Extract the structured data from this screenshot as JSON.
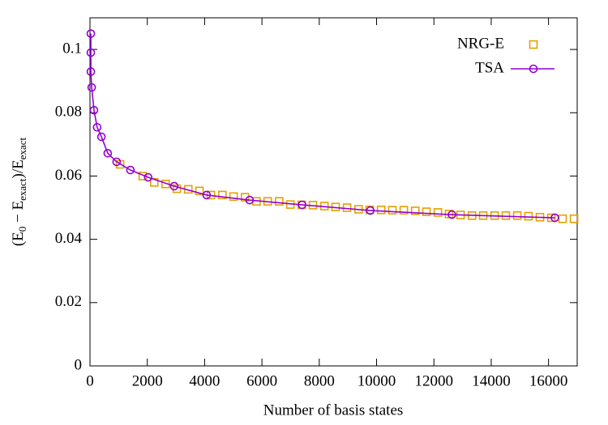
{
  "chart_data": {
    "type": "line",
    "xlabel": "Number of basis states",
    "ylabel": [
      "(E",
      "0",
      " − E",
      "exact",
      ")/E",
      "exact"
    ],
    "xlim": [
      0,
      17000
    ],
    "ylim": [
      0,
      0.11
    ],
    "xticks": [
      0,
      2000,
      4000,
      6000,
      8000,
      10000,
      12000,
      14000,
      16000
    ],
    "yticks": [
      0,
      0.02,
      0.04,
      0.06,
      0.08,
      0.1
    ],
    "grid": false,
    "legend": "top-right",
    "series": [
      {
        "name": "NRG-E",
        "color": "#e69f00",
        "marker": "square",
        "line": false,
        "x": [
          1050,
          1840,
          2240,
          2640,
          3030,
          3430,
          3820,
          4220,
          4620,
          5010,
          5410,
          5810,
          6200,
          6600,
          6990,
          7390,
          7780,
          8180,
          8570,
          8970,
          9370,
          9760,
          10160,
          10550,
          10950,
          11350,
          11740,
          12140,
          12530,
          12930,
          13330,
          13720,
          14120,
          14510,
          14910,
          15300,
          15700,
          16100,
          16490,
          16890
        ],
        "values": [
          0.0637,
          0.06,
          0.058,
          0.0575,
          0.056,
          0.0558,
          0.0553,
          0.054,
          0.054,
          0.0535,
          0.0533,
          0.052,
          0.052,
          0.052,
          0.051,
          0.0509,
          0.0508,
          0.0505,
          0.0502,
          0.05,
          0.0495,
          0.0493,
          0.0493,
          0.0492,
          0.0492,
          0.049,
          0.0487,
          0.0485,
          0.048,
          0.0477,
          0.0475,
          0.0475,
          0.0475,
          0.0475,
          0.0475,
          0.0473,
          0.047,
          0.0468,
          0.0465,
          0.0465
        ]
      },
      {
        "name": "TSA",
        "color": "#9400d3",
        "marker": "circle",
        "line": true,
        "x": [
          30,
          30,
          30,
          60,
          140,
          250,
          400,
          620,
          930,
          1410,
          2030,
          2940,
          4070,
          5570,
          7400,
          9780,
          12630,
          16220
        ],
        "values": [
          0.105,
          0.099,
          0.093,
          0.088,
          0.0808,
          0.0754,
          0.0724,
          0.0672,
          0.0645,
          0.0619,
          0.0596,
          0.0568,
          0.054,
          0.0524,
          0.0509,
          0.0491,
          0.0478,
          0.0468
        ]
      }
    ]
  }
}
